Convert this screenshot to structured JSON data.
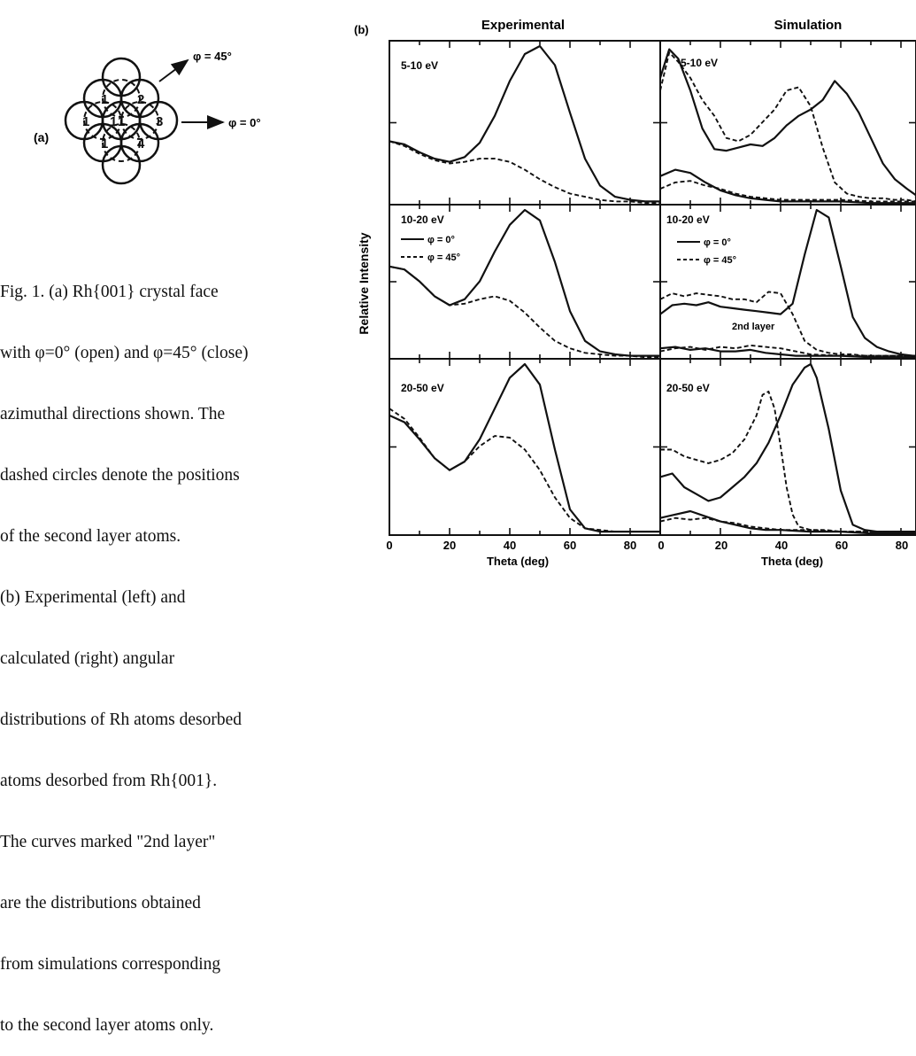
{
  "panel_a": {
    "label": "(a)",
    "phi45": "φ = 45°",
    "phi0": "φ = 0°",
    "atom_labels": [
      "1",
      "2",
      "3",
      "4",
      "1",
      "1",
      "1",
      "1"
    ]
  },
  "caption": {
    "lines": [
      "Fig. 1. (a) Rh{001} crystal face",
      "with φ=0° (open) and φ=45° (close)",
      "azimuthal directions shown. The",
      "dashed circles denote the positions",
      "of the second layer atoms.",
      "(b) Experimental (left) and",
      "calculated (right) angular",
      "distributions of Rh atoms desorbed",
      "atoms desorbed from Rh{001}.",
      "The curves marked \"2nd layer\"",
      "are the distributions obtained",
      "from simulations corresponding",
      "to the second layer atoms only."
    ]
  },
  "panel_b": {
    "label": "(b)",
    "col_titles": [
      "Experimental",
      "Simulation"
    ],
    "ylabel": "Relative Intensity",
    "xlabel": "Theta (deg)",
    "x_ticks": [
      "0",
      "20",
      "40",
      "60",
      "80"
    ],
    "rows": [
      {
        "energy": "5-10 eV"
      },
      {
        "energy": "10-20 eV"
      },
      {
        "energy": "20-50 eV"
      }
    ],
    "legend": {
      "solid": "φ = 0°",
      "dashed": "φ = 45°"
    },
    "second_layer_label": "2nd layer"
  },
  "chart_data": [
    {
      "type": "line",
      "title": "Experimental",
      "xlabel": "Theta (deg)",
      "ylabel": "Relative Intensity",
      "xlim": [
        0,
        90
      ],
      "panels": [
        {
          "energy": "5-10 eV",
          "series": [
            {
              "name": "φ = 0°",
              "style": "solid",
              "x": [
                0,
                5,
                10,
                15,
                20,
                25,
                30,
                35,
                40,
                45,
                50,
                55,
                60,
                65,
                70,
                75,
                80,
                85,
                90
              ],
              "y": [
                0.4,
                0.38,
                0.33,
                0.29,
                0.27,
                0.3,
                0.39,
                0.56,
                0.78,
                0.95,
                1.0,
                0.88,
                0.58,
                0.29,
                0.12,
                0.05,
                0.03,
                0.02,
                0.02
              ]
            },
            {
              "name": "φ = 45°",
              "style": "dashed",
              "x": [
                0,
                5,
                10,
                15,
                20,
                25,
                30,
                35,
                40,
                45,
                50,
                55,
                60,
                65,
                70,
                75,
                80,
                85,
                90
              ],
              "y": [
                0.4,
                0.37,
                0.32,
                0.28,
                0.26,
                0.27,
                0.29,
                0.29,
                0.27,
                0.22,
                0.16,
                0.11,
                0.07,
                0.05,
                0.03,
                0.02,
                0.02,
                0.01,
                0.01
              ]
            }
          ]
        },
        {
          "energy": "10-20 eV",
          "series": [
            {
              "name": "φ = 0°",
              "style": "solid",
              "x": [
                0,
                5,
                10,
                15,
                20,
                25,
                30,
                35,
                40,
                45,
                50,
                55,
                60,
                65,
                70,
                75,
                80,
                85,
                90
              ],
              "y": [
                0.62,
                0.6,
                0.52,
                0.42,
                0.36,
                0.4,
                0.52,
                0.72,
                0.9,
                1.0,
                0.93,
                0.65,
                0.32,
                0.12,
                0.05,
                0.03,
                0.02,
                0.02,
                0.02
              ]
            },
            {
              "name": "φ = 45°",
              "style": "dashed",
              "x": [
                0,
                5,
                10,
                15,
                20,
                25,
                30,
                35,
                40,
                45,
                50,
                55,
                60,
                65,
                70,
                75,
                80,
                85,
                90
              ],
              "y": [
                0.62,
                0.6,
                0.52,
                0.42,
                0.36,
                0.37,
                0.4,
                0.42,
                0.39,
                0.31,
                0.21,
                0.12,
                0.07,
                0.04,
                0.03,
                0.02,
                0.02,
                0.01,
                0.01
              ]
            }
          ]
        },
        {
          "energy": "20-50 eV",
          "series": [
            {
              "name": "φ = 0°",
              "style": "solid",
              "x": [
                0,
                5,
                10,
                15,
                20,
                25,
                30,
                35,
                40,
                45,
                50,
                55,
                60,
                65,
                70,
                75,
                80,
                85,
                90
              ],
              "y": [
                0.7,
                0.66,
                0.56,
                0.45,
                0.38,
                0.43,
                0.56,
                0.74,
                0.92,
                1.0,
                0.88,
                0.5,
                0.15,
                0.04,
                0.02,
                0.02,
                0.02,
                0.02,
                0.02
              ]
            },
            {
              "name": "φ = 45°",
              "style": "dashed",
              "x": [
                0,
                5,
                10,
                15,
                20,
                25,
                30,
                35,
                40,
                45,
                50,
                55,
                60,
                65,
                70,
                75,
                80,
                85,
                90
              ],
              "y": [
                0.74,
                0.68,
                0.57,
                0.45,
                0.38,
                0.43,
                0.52,
                0.58,
                0.57,
                0.5,
                0.38,
                0.22,
                0.1,
                0.04,
                0.03,
                0.02,
                0.02,
                0.02,
                0.02
              ]
            }
          ]
        }
      ]
    },
    {
      "type": "line",
      "title": "Simulation",
      "xlabel": "Theta (deg)",
      "xlim": [
        0,
        90
      ],
      "panels": [
        {
          "energy": "5-10 eV",
          "series": [
            {
              "name": "φ = 0°",
              "style": "solid",
              "x": [
                0,
                3,
                6,
                10,
                14,
                18,
                22,
                26,
                30,
                34,
                38,
                42,
                46,
                50,
                54,
                58,
                62,
                66,
                70,
                74,
                78,
                82,
                86,
                90
              ],
              "y": [
                0.8,
                0.98,
                0.92,
                0.72,
                0.48,
                0.35,
                0.34,
                0.36,
                0.38,
                0.37,
                0.42,
                0.5,
                0.56,
                0.6,
                0.66,
                0.78,
                0.7,
                0.58,
                0.42,
                0.26,
                0.16,
                0.1,
                0.06,
                0.04
              ]
            },
            {
              "name": "φ = 45°",
              "style": "dashed",
              "x": [
                0,
                3,
                6,
                10,
                14,
                18,
                22,
                26,
                30,
                34,
                38,
                42,
                46,
                50,
                54,
                58,
                62,
                66,
                70,
                74,
                78,
                82,
                86,
                90
              ],
              "y": [
                0.72,
                0.96,
                0.9,
                0.8,
                0.66,
                0.56,
                0.42,
                0.4,
                0.44,
                0.52,
                0.6,
                0.72,
                0.74,
                0.62,
                0.36,
                0.14,
                0.07,
                0.05,
                0.04,
                0.04,
                0.03,
                0.03,
                0.02,
                0.02
              ]
            },
            {
              "name": "2nd layer φ = 0°",
              "style": "solid",
              "x": [
                0,
                5,
                10,
                15,
                20,
                25,
                30,
                35,
                40,
                45,
                50,
                60,
                70,
                80,
                90
              ],
              "y": [
                0.18,
                0.22,
                0.2,
                0.14,
                0.09,
                0.06,
                0.04,
                0.03,
                0.02,
                0.02,
                0.02,
                0.02,
                0.01,
                0.01,
                0.01
              ]
            },
            {
              "name": "2nd layer φ = 45°",
              "style": "dashed",
              "x": [
                0,
                5,
                10,
                15,
                20,
                25,
                30,
                35,
                40,
                45,
                50,
                60,
                70,
                80,
                90
              ],
              "y": [
                0.1,
                0.14,
                0.15,
                0.12,
                0.1,
                0.07,
                0.05,
                0.04,
                0.03,
                0.03,
                0.03,
                0.03,
                0.02,
                0.02,
                0.02
              ]
            }
          ]
        },
        {
          "energy": "10-20 eV",
          "series": [
            {
              "name": "φ = 0°",
              "style": "solid",
              "x": [
                0,
                4,
                8,
                12,
                16,
                20,
                24,
                28,
                32,
                36,
                40,
                44,
                48,
                52,
                56,
                60,
                64,
                68,
                72,
                76,
                80,
                84,
                90
              ],
              "y": [
                0.3,
                0.36,
                0.37,
                0.36,
                0.38,
                0.35,
                0.34,
                0.33,
                0.32,
                0.31,
                0.3,
                0.37,
                0.7,
                1.0,
                0.95,
                0.62,
                0.28,
                0.14,
                0.08,
                0.05,
                0.03,
                0.02,
                0.02
              ]
            },
            {
              "name": "φ = 45°",
              "style": "dashed",
              "x": [
                0,
                4,
                8,
                12,
                16,
                20,
                24,
                28,
                32,
                36,
                40,
                44,
                48,
                52,
                56,
                60,
                64,
                68,
                72,
                76,
                80,
                84,
                90
              ],
              "y": [
                0.4,
                0.44,
                0.42,
                0.44,
                0.43,
                0.42,
                0.4,
                0.4,
                0.38,
                0.45,
                0.44,
                0.3,
                0.12,
                0.06,
                0.04,
                0.03,
                0.03,
                0.02,
                0.02,
                0.02,
                0.02,
                0.02,
                0.02
              ]
            },
            {
              "name": "2nd layer φ = 0°",
              "style": "solid",
              "x": [
                0,
                5,
                10,
                15,
                20,
                25,
                30,
                35,
                40,
                45,
                50,
                60,
                70,
                80,
                90
              ],
              "y": [
                0.07,
                0.08,
                0.06,
                0.07,
                0.05,
                0.05,
                0.06,
                0.04,
                0.03,
                0.02,
                0.02,
                0.02,
                0.01,
                0.01,
                0.01
              ]
            },
            {
              "name": "2nd layer φ = 45°",
              "style": "dashed",
              "x": [
                0,
                5,
                10,
                15,
                20,
                25,
                30,
                35,
                40,
                45,
                50,
                60,
                70,
                80,
                90
              ],
              "y": [
                0.05,
                0.07,
                0.08,
                0.06,
                0.08,
                0.07,
                0.09,
                0.08,
                0.07,
                0.05,
                0.03,
                0.02,
                0.02,
                0.02,
                0.02
              ]
            }
          ]
        },
        {
          "energy": "20-50 eV",
          "series": [
            {
              "name": "φ = 0°",
              "style": "solid",
              "x": [
                0,
                4,
                8,
                12,
                16,
                20,
                24,
                28,
                32,
                36,
                40,
                44,
                48,
                50,
                52,
                56,
                60,
                64,
                68,
                72,
                80,
                90
              ],
              "y": [
                0.34,
                0.36,
                0.28,
                0.24,
                0.2,
                0.22,
                0.28,
                0.34,
                0.42,
                0.54,
                0.7,
                0.88,
                0.98,
                1.0,
                0.92,
                0.62,
                0.26,
                0.06,
                0.03,
                0.02,
                0.02,
                0.02
              ]
            },
            {
              "name": "φ = 45°",
              "style": "dashed",
              "x": [
                0,
                4,
                8,
                12,
                16,
                20,
                24,
                28,
                32,
                34,
                36,
                38,
                40,
                42,
                44,
                46,
                50,
                55,
                60,
                70,
                80,
                90
              ],
              "y": [
                0.5,
                0.5,
                0.46,
                0.44,
                0.42,
                0.44,
                0.48,
                0.56,
                0.7,
                0.82,
                0.84,
                0.74,
                0.52,
                0.28,
                0.12,
                0.05,
                0.03,
                0.03,
                0.02,
                0.02,
                0.02,
                0.02
              ]
            },
            {
              "name": "2nd layer φ = 0°",
              "style": "solid",
              "x": [
                0,
                5,
                10,
                15,
                20,
                25,
                30,
                35,
                40,
                50,
                60,
                70,
                80,
                90
              ],
              "y": [
                0.1,
                0.12,
                0.14,
                0.11,
                0.08,
                0.06,
                0.04,
                0.03,
                0.03,
                0.02,
                0.02,
                0.01,
                0.01,
                0.01
              ]
            },
            {
              "name": "2nd layer φ = 45°",
              "style": "dashed",
              "x": [
                0,
                5,
                10,
                15,
                20,
                25,
                30,
                35,
                40,
                50,
                60,
                70,
                80,
                90
              ],
              "y": [
                0.08,
                0.1,
                0.09,
                0.1,
                0.08,
                0.07,
                0.05,
                0.04,
                0.03,
                0.03,
                0.02,
                0.02,
                0.02,
                0.02
              ]
            }
          ]
        }
      ]
    }
  ]
}
